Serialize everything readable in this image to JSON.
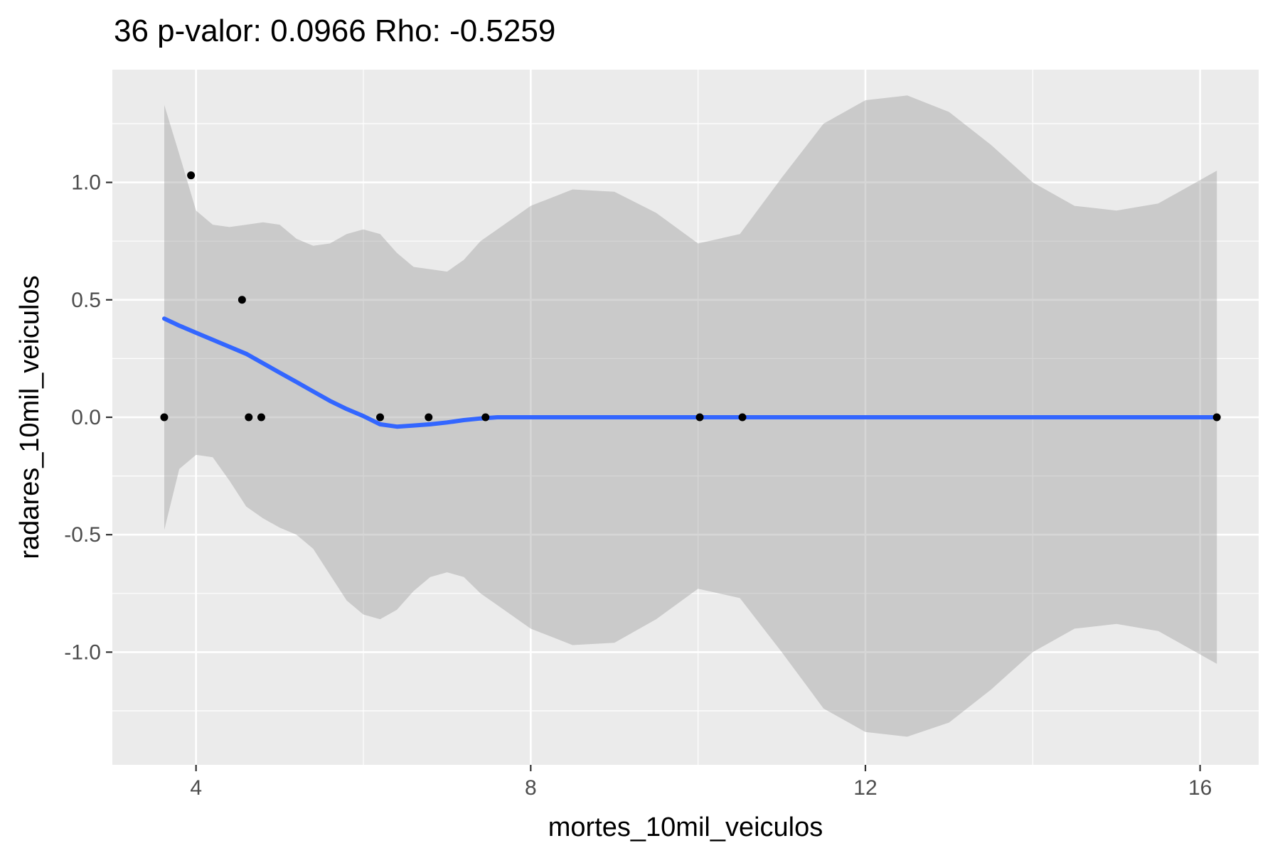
{
  "chart_data": {
    "type": "scatter",
    "title": "36 p-valor: 0.0966 Rho: -0.5259",
    "xlabel": "mortes_10mil_veiculos",
    "ylabel": "radares_10mil_veiculos",
    "xlim": [
      3.0,
      16.7
    ],
    "ylim": [
      -1.48,
      1.48
    ],
    "x_ticks": [
      4,
      8,
      12,
      16
    ],
    "x_tick_labels": [
      "4",
      "8",
      "12",
      "16"
    ],
    "y_ticks": [
      -1.0,
      -0.5,
      0.0,
      0.5,
      1.0
    ],
    "y_tick_labels": [
      "-1.0",
      "-0.5",
      "0.0",
      "0.5",
      "1.0"
    ],
    "grid": true,
    "points": [
      {
        "x": 3.62,
        "y": 0.0
      },
      {
        "x": 3.94,
        "y": 1.03
      },
      {
        "x": 4.55,
        "y": 0.5
      },
      {
        "x": 4.63,
        "y": 0.0
      },
      {
        "x": 4.78,
        "y": 0.0
      },
      {
        "x": 6.2,
        "y": 0.0
      },
      {
        "x": 6.78,
        "y": 0.0
      },
      {
        "x": 7.46,
        "y": 0.0
      },
      {
        "x": 10.02,
        "y": 0.0
      },
      {
        "x": 10.53,
        "y": 0.0
      },
      {
        "x": 16.2,
        "y": 0.0
      }
    ],
    "smooth": {
      "x": [
        3.62,
        3.8,
        4.0,
        4.2,
        4.4,
        4.6,
        4.8,
        5.0,
        5.2,
        5.4,
        5.6,
        5.8,
        6.0,
        6.2,
        6.4,
        6.6,
        6.8,
        7.0,
        7.2,
        7.4,
        7.6,
        8.0,
        8.5,
        9.0,
        9.5,
        10.0,
        10.5,
        11.0,
        11.5,
        12.0,
        12.5,
        13.0,
        13.5,
        14.0,
        14.5,
        15.0,
        15.5,
        16.2
      ],
      "y": [
        0.42,
        0.39,
        0.36,
        0.33,
        0.3,
        0.27,
        0.23,
        0.19,
        0.15,
        0.11,
        0.07,
        0.035,
        0.005,
        -0.03,
        -0.04,
        -0.035,
        -0.03,
        -0.022,
        -0.012,
        -0.005,
        0.0,
        0.0,
        0.0,
        0.0,
        0.0,
        0.0,
        0.0,
        0.0,
        0.0,
        0.0,
        0.0,
        0.0,
        0.0,
        0.0,
        0.0,
        0.0,
        0.0,
        0.0
      ],
      "upper": [
        1.33,
        1.12,
        0.88,
        0.82,
        0.81,
        0.82,
        0.83,
        0.82,
        0.76,
        0.73,
        0.74,
        0.78,
        0.8,
        0.78,
        0.7,
        0.64,
        0.63,
        0.62,
        0.67,
        0.75,
        0.8,
        0.9,
        0.97,
        0.96,
        0.87,
        0.74,
        0.78,
        1.02,
        1.25,
        1.35,
        1.37,
        1.3,
        1.16,
        1.0,
        0.9,
        0.88,
        0.91,
        1.05
      ],
      "lower": [
        -0.48,
        -0.22,
        -0.16,
        -0.17,
        -0.27,
        -0.38,
        -0.43,
        -0.47,
        -0.5,
        -0.56,
        -0.67,
        -0.78,
        -0.84,
        -0.86,
        -0.82,
        -0.74,
        -0.68,
        -0.66,
        -0.68,
        -0.75,
        -0.8,
        -0.9,
        -0.97,
        -0.96,
        -0.86,
        -0.73,
        -0.77,
        -1.0,
        -1.24,
        -1.34,
        -1.36,
        -1.3,
        -1.16,
        -1.0,
        -0.9,
        -0.88,
        -0.91,
        -1.05
      ]
    },
    "colors": {
      "panel": "#ebebeb",
      "grid": "#ffffff",
      "points": "#000000",
      "smooth_line": "#3366ff",
      "ribbon": "#999999"
    }
  }
}
